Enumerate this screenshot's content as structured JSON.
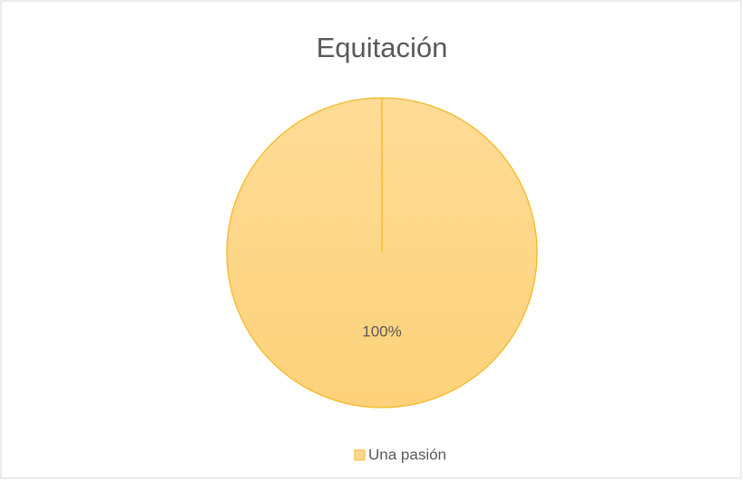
{
  "chart_data": {
    "type": "pie",
    "title": "Equitación",
    "categories": [
      "Una pasión"
    ],
    "values": [
      100
    ],
    "value_labels": [
      "100%"
    ],
    "colors": [
      "#fed88d"
    ],
    "stroke": "#f4b824",
    "legend": "bottom"
  }
}
